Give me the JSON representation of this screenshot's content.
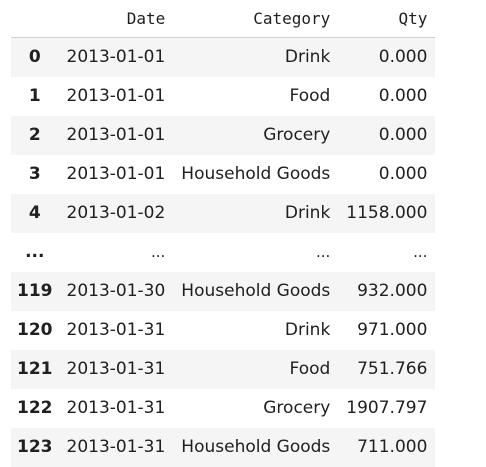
{
  "table": {
    "columns": [
      "Date",
      "Category",
      "Qty"
    ],
    "index_header": "",
    "rows": [
      {
        "index": "0",
        "date": "2013-01-01",
        "category": "Drink",
        "qty": "0.000"
      },
      {
        "index": "1",
        "date": "2013-01-01",
        "category": "Food",
        "qty": "0.000"
      },
      {
        "index": "2",
        "date": "2013-01-01",
        "category": "Grocery",
        "qty": "0.000"
      },
      {
        "index": "3",
        "date": "2013-01-01",
        "category": "Household Goods",
        "qty": "0.000"
      },
      {
        "index": "4",
        "date": "2013-01-02",
        "category": "Drink",
        "qty": "1158.000"
      },
      {
        "index": "...",
        "date": "...",
        "category": "...",
        "qty": "..."
      },
      {
        "index": "119",
        "date": "2013-01-30",
        "category": "Household Goods",
        "qty": "932.000"
      },
      {
        "index": "120",
        "date": "2013-01-31",
        "category": "Drink",
        "qty": "971.000"
      },
      {
        "index": "121",
        "date": "2013-01-31",
        "category": "Food",
        "qty": "751.766"
      },
      {
        "index": "122",
        "date": "2013-01-31",
        "category": "Grocery",
        "qty": "1907.797"
      },
      {
        "index": "123",
        "date": "2013-01-31",
        "category": "Household Goods",
        "qty": "711.000"
      }
    ]
  },
  "colors": {
    "stripe": "#f5f5f5",
    "header_rule": "#d0d0d0",
    "text": "#202020"
  }
}
